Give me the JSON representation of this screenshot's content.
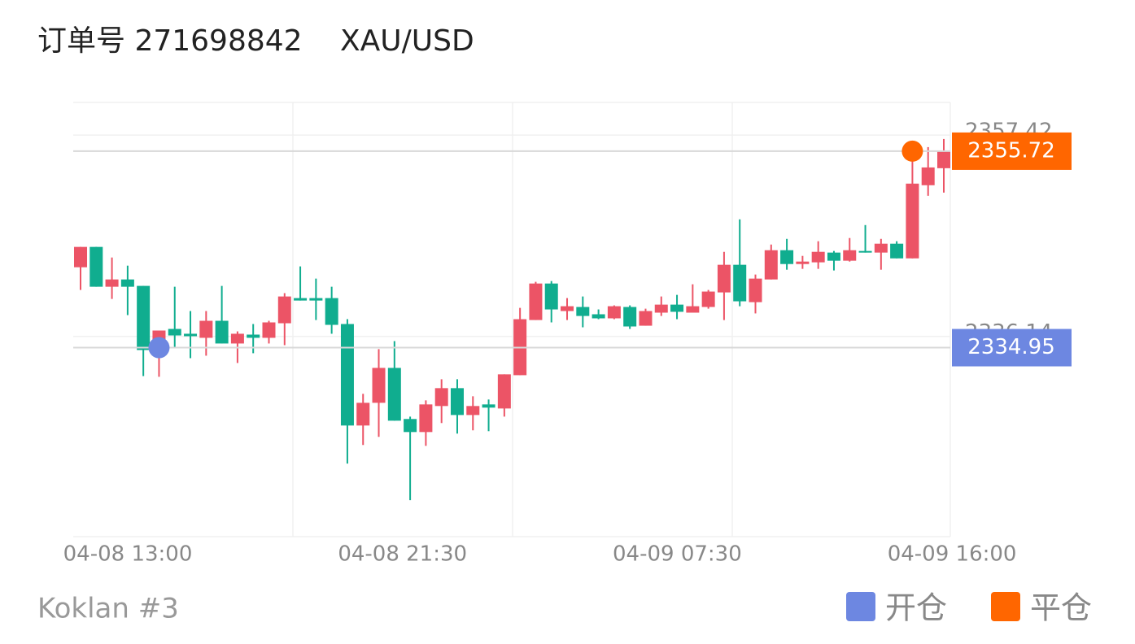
{
  "header": {
    "order": "订单号 271698842",
    "symbol": "XAU/USD"
  },
  "chart_data": {
    "type": "candlestick",
    "x_labels": [
      "04-08 13:00",
      "04-08 21:30",
      "04-09 07:30",
      "04-09 16:00"
    ],
    "open": [
      2343.45,
      2345.6,
      2341.39,
      2342.16,
      2341.48,
      2335.73,
      2336.93,
      2336.42,
      2335.99,
      2337.79,
      2335.39,
      2336.33,
      2335.99,
      2337.53,
      2340.19,
      2340.19,
      2340.19,
      2337.45,
      2326.72,
      2329.12,
      2332.81,
      2327.41,
      2326.03,
      2328.78,
      2330.67,
      2327.83,
      2328.95,
      2328.52,
      2332.04,
      2337.87,
      2341.73,
      2338.82,
      2339.25,
      2338.48,
      2338.05,
      2339.25,
      2337.27,
      2338.65,
      2339.5,
      2338.65,
      2339.25,
      2340.79,
      2343.71,
      2339.76,
      2342.16,
      2345.25,
      2343.79,
      2343.97,
      2345.0,
      2344.14,
      2345.17,
      2345.0,
      2345.94,
      2344.39,
      2352.12,
      2353.92
    ],
    "high": [
      2345.6,
      2345.6,
      2344.48,
      2343.62,
      2341.48,
      2336.76,
      2341.39,
      2338.82,
      2338.82,
      2341.48,
      2336.67,
      2337.45,
      2337.79,
      2340.71,
      2343.54,
      2342.25,
      2341.39,
      2337.96,
      2330.07,
      2334.79,
      2335.64,
      2327.66,
      2329.38,
      2331.61,
      2331.61,
      2329.81,
      2329.47,
      2332.13,
      2339.16,
      2341.91,
      2341.99,
      2340.19,
      2340.36,
      2338.99,
      2339.42,
      2339.42,
      2339.07,
      2340.36,
      2340.53,
      2341.65,
      2341.05,
      2345.08,
      2348.51,
      2342.68,
      2345.85,
      2346.45,
      2344.65,
      2346.2,
      2345.17,
      2346.54,
      2347.91,
      2346.45,
      2346.2,
      2354.78,
      2356.15,
      2357.01
    ],
    "low": [
      2341.05,
      2341.39,
      2340.1,
      2338.39,
      2331.95,
      2331.87,
      2334.87,
      2333.84,
      2334.1,
      2335.39,
      2333.33,
      2334.36,
      2335.39,
      2335.21,
      2339.93,
      2337.87,
      2336.42,
      2322.69,
      2324.66,
      2325.52,
      2327.23,
      2318.83,
      2324.57,
      2326.98,
      2325.86,
      2326.21,
      2326.12,
      2327.66,
      2332.04,
      2337.87,
      2337.62,
      2337.87,
      2337.1,
      2337.96,
      2337.96,
      2336.93,
      2337.27,
      2338.3,
      2337.96,
      2338.65,
      2339.07,
      2337.87,
      2339.33,
      2338.57,
      2342.16,
      2343.19,
      2343.28,
      2343.28,
      2343.11,
      2344.05,
      2345.0,
      2343.19,
      2344.39,
      2344.39,
      2351.0,
      2351.34
    ],
    "close": [
      2345.6,
      2341.39,
      2342.16,
      2341.39,
      2334.7,
      2336.76,
      2336.24,
      2336.16,
      2337.79,
      2335.39,
      2336.42,
      2335.99,
      2337.62,
      2340.36,
      2339.93,
      2339.93,
      2337.36,
      2326.72,
      2329.12,
      2332.81,
      2327.23,
      2326.03,
      2328.95,
      2330.67,
      2327.83,
      2328.78,
      2328.61,
      2332.13,
      2337.96,
      2341.73,
      2338.99,
      2339.33,
      2338.3,
      2338.05,
      2339.33,
      2337.19,
      2338.82,
      2339.5,
      2338.74,
      2339.33,
      2340.88,
      2343.71,
      2339.85,
      2342.25,
      2345.25,
      2343.79,
      2344.05,
      2345.08,
      2344.14,
      2345.25,
      2345.0,
      2345.94,
      2344.39,
      2352.29,
      2354.0,
      2355.72
    ],
    "up_color": "#ec5466",
    "down_color": "#10ad8f",
    "ylim": [
      2314.97,
      2360.87
    ],
    "yticks": [
      2357.42,
      2336.14
    ],
    "markers": [
      {
        "name": "开仓",
        "value": 2334.95,
        "candle": 5,
        "color": "#6d87e1"
      },
      {
        "name": "平仓",
        "value": 2355.72,
        "candle": 53,
        "color": "#ff6600"
      }
    ]
  },
  "footer": "Koklan #3"
}
